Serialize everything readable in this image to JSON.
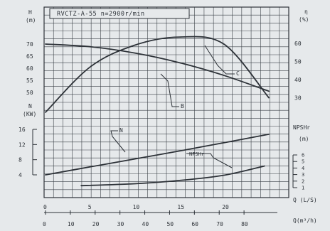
{
  "chart_data": {
    "type": "line",
    "title": "RVCTZ-A-55  n=2900r/min",
    "x_axis_top": {
      "label": "Q (L/S)",
      "ticks": [
        "0",
        "5",
        "10",
        "15",
        "20"
      ],
      "range": [
        0,
        25
      ]
    },
    "x_axis_bottom": {
      "label": "Q(m³/h)",
      "ticks": [
        "0",
        "10",
        "20",
        "30",
        "40",
        "50",
        "60",
        "70",
        "80"
      ],
      "range": [
        0,
        90
      ]
    },
    "left_head_axis": {
      "label_lines": [
        "H",
        "(m)"
      ],
      "ticks": [
        "70",
        "65",
        "60",
        "55",
        "50"
      ]
    },
    "left_power_axis": {
      "label_lines": [
        "N",
        "(KW)"
      ],
      "ticks": [
        "16",
        "12",
        "8",
        "4"
      ]
    },
    "right_eff_axis": {
      "label_lines": [
        "η",
        "(%)"
      ],
      "ticks": [
        "60",
        "50",
        "40",
        "30"
      ]
    },
    "right_npsh_axis": {
      "label_lines": [
        "NPSHr",
        "(m)"
      ],
      "ticks": [
        "6",
        "5",
        "4",
        "3",
        "2",
        "1"
      ]
    },
    "series": [
      {
        "name": "H",
        "x": [
          0,
          5,
          10,
          15,
          20,
          25
        ],
        "values": [
          70,
          68.9,
          66.3,
          62.3,
          57,
          50.5
        ]
      },
      {
        "name": "η",
        "x": [
          0,
          5,
          10,
          15,
          20,
          25
        ],
        "values": [
          22,
          47,
          59,
          63.5,
          59.5,
          30
        ]
      },
      {
        "name": "N",
        "x": [
          0,
          5,
          10,
          15,
          20,
          25
        ],
        "values": [
          4,
          6.1,
          8.2,
          10.3,
          12.5,
          14.7
        ]
      },
      {
        "name": "NPSHr",
        "x": [
          4,
          10,
          15,
          20,
          24.5
        ],
        "values": [
          1.3,
          1.6,
          2.1,
          2.9,
          4.3
        ]
      }
    ],
    "curve_tags": [
      "B",
      "C",
      "N",
      "NPSHr"
    ],
    "grid": true,
    "colors": {
      "ink": "#2d3238",
      "grid": "#3b4047",
      "background": "#e6e9eb"
    }
  }
}
